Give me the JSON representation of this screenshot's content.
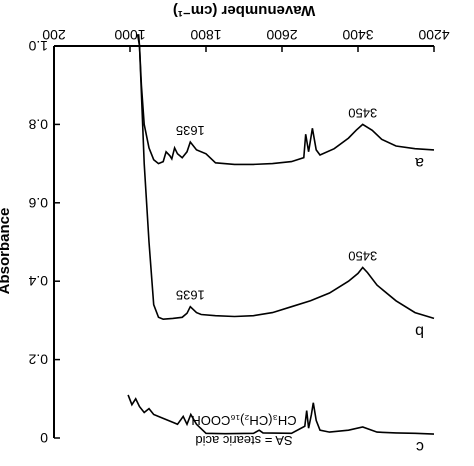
{
  "chart_data": {
    "type": "line",
    "title": "",
    "xlabel": "Wavenumber (cm⁻¹)",
    "ylabel": "Absorbance",
    "xlim": [
      4200,
      200
    ],
    "ylim": [
      0,
      1.0
    ],
    "x_ticks": [
      "4200",
      "3400",
      "2600",
      "1800",
      "1000",
      "200"
    ],
    "y_ticks": [
      "0",
      "0.2",
      "0.4",
      "0.6",
      "0.8",
      "1.0"
    ],
    "legend": [
      "SA = stearic acid",
      "CH₃(CH₂)₁₆COOH"
    ],
    "grid": false,
    "series": [
      {
        "name": "a",
        "points": [
          [
            4200,
            0.735
          ],
          [
            4000,
            0.738
          ],
          [
            3800,
            0.745
          ],
          [
            3650,
            0.762
          ],
          [
            3550,
            0.785
          ],
          [
            3450,
            0.8
          ],
          [
            3380,
            0.785
          ],
          [
            3300,
            0.765
          ],
          [
            3150,
            0.738
          ],
          [
            3000,
            0.722
          ],
          [
            2960,
            0.735
          ],
          [
            2920,
            0.79
          ],
          [
            2900,
            0.76
          ],
          [
            2880,
            0.73
          ],
          [
            2850,
            0.775
          ],
          [
            2830,
            0.715
          ],
          [
            2700,
            0.705
          ],
          [
            2500,
            0.7
          ],
          [
            2300,
            0.698
          ],
          [
            2100,
            0.698
          ],
          [
            1900,
            0.702
          ],
          [
            1800,
            0.725
          ],
          [
            1700,
            0.735
          ],
          [
            1635,
            0.755
          ],
          [
            1600,
            0.73
          ],
          [
            1550,
            0.715
          ],
          [
            1500,
            0.725
          ],
          [
            1470,
            0.74
          ],
          [
            1440,
            0.712
          ],
          [
            1420,
            0.72
          ],
          [
            1380,
            0.73
          ],
          [
            1350,
            0.705
          ],
          [
            1300,
            0.7
          ],
          [
            1250,
            0.71
          ],
          [
            1200,
            0.74
          ],
          [
            1150,
            0.8
          ],
          [
            1120,
            0.9
          ],
          [
            1100,
            1.0
          ],
          [
            1090,
            1.03
          ]
        ]
      },
      {
        "name": "b",
        "points": [
          [
            4200,
            0.305
          ],
          [
            4000,
            0.32
          ],
          [
            3800,
            0.35
          ],
          [
            3600,
            0.39
          ],
          [
            3500,
            0.422
          ],
          [
            3450,
            0.435
          ],
          [
            3400,
            0.42
          ],
          [
            3300,
            0.4
          ],
          [
            3100,
            0.37
          ],
          [
            2900,
            0.35
          ],
          [
            2700,
            0.335
          ],
          [
            2500,
            0.32
          ],
          [
            2300,
            0.312
          ],
          [
            2100,
            0.31
          ],
          [
            1900,
            0.312
          ],
          [
            1750,
            0.315
          ],
          [
            1700,
            0.32
          ],
          [
            1635,
            0.335
          ],
          [
            1600,
            0.318
          ],
          [
            1550,
            0.308
          ],
          [
            1450,
            0.305
          ],
          [
            1350,
            0.303
          ],
          [
            1300,
            0.308
          ],
          [
            1250,
            0.34
          ],
          [
            1200,
            0.5
          ],
          [
            1150,
            0.7
          ],
          [
            1120,
            0.88
          ],
          [
            1100,
            1.0
          ],
          [
            1080,
            1.03
          ]
        ]
      },
      {
        "name": "c",
        "points": [
          [
            4200,
            0.01
          ],
          [
            4000,
            0.012
          ],
          [
            3800,
            0.013
          ],
          [
            3600,
            0.015
          ],
          [
            3450,
            0.028
          ],
          [
            3300,
            0.02
          ],
          [
            3100,
            0.015
          ],
          [
            3000,
            0.02
          ],
          [
            2960,
            0.045
          ],
          [
            2930,
            0.09
          ],
          [
            2910,
            0.06
          ],
          [
            2880,
            0.025
          ],
          [
            2860,
            0.07
          ],
          [
            2840,
            0.03
          ],
          [
            2700,
            0.012
          ],
          [
            2400,
            0.013
          ],
          [
            2360,
            0.02
          ],
          [
            2300,
            0.012
          ],
          [
            2000,
            0.011
          ],
          [
            1800,
            0.012
          ],
          [
            1700,
            0.035
          ],
          [
            1640,
            0.06
          ],
          [
            1600,
            0.035
          ],
          [
            1560,
            0.055
          ],
          [
            1500,
            0.035
          ],
          [
            1450,
            0.04
          ],
          [
            1350,
            0.05
          ],
          [
            1250,
            0.06
          ],
          [
            1200,
            0.075
          ],
          [
            1150,
            0.065
          ],
          [
            1100,
            0.08
          ],
          [
            1060,
            0.1
          ],
          [
            1020,
            0.085
          ],
          [
            980,
            0.11
          ]
        ]
      }
    ],
    "annotations": [
      {
        "text": "3450",
        "series": "a",
        "x": 3450
      },
      {
        "text": "3450",
        "series": "b",
        "x": 3450
      },
      {
        "text": "1635",
        "series": "a",
        "x": 1635
      },
      {
        "text": "1635",
        "series": "b",
        "x": 1635
      }
    ]
  }
}
